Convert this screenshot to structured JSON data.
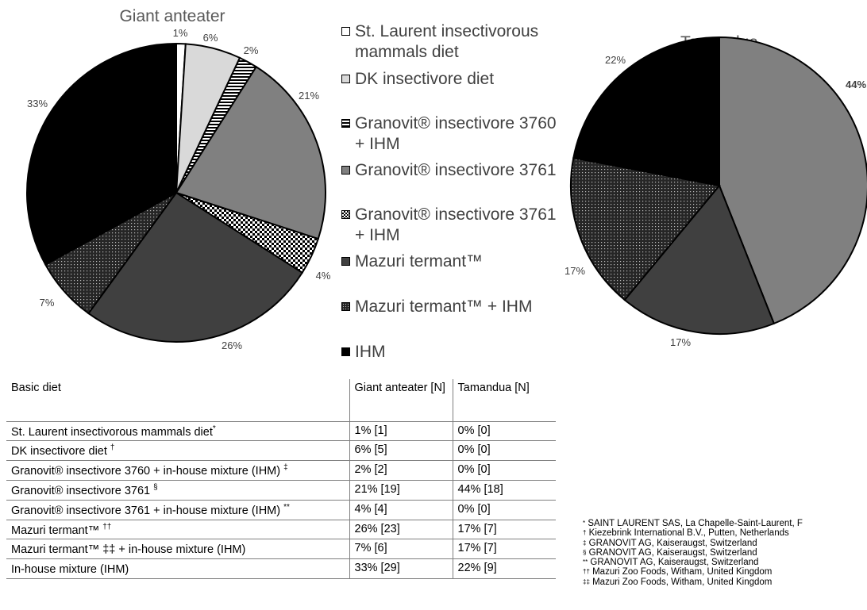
{
  "colors": {
    "text": "#404040",
    "St. Laurent": "#ffffff",
    "DK": "#d9d9d9",
    "Granovit 3760 + IHM": "hatch-horizontal",
    "Granovit 3761": "#808080",
    "Granovit 3761 + IHM": "checker",
    "Mazuri": "#404040",
    "Mazuri + IHM": "dotted-dark",
    "IHM": "#000000"
  },
  "legend": [
    {
      "label": "St. Laurent insectivorous mammals diet",
      "fill": "#ffffff"
    },
    {
      "label": "DK insectivore diet",
      "fill": "#d9d9d9"
    },
    {
      "label": "Granovit® insectivore 3760 + IHM",
      "fill": "hatch"
    },
    {
      "label": "Granovit® insectivore 3761",
      "fill": "#808080"
    },
    {
      "label": "Granovit® insectivore 3761 + IHM",
      "fill": "checker"
    },
    {
      "label": "Mazuri termant™",
      "fill": "#404040"
    },
    {
      "label": "Mazuri termant™ + IHM",
      "fill": "dots"
    },
    {
      "label": "IHM",
      "fill": "#000000"
    }
  ],
  "chart_data": [
    {
      "type": "pie",
      "title": "Giant anteater",
      "categories": [
        "St. Laurent insectivorous mammals diet",
        "DK insectivore diet",
        "Granovit® insectivore 3760 + IHM",
        "Granovit® insectivore 3761",
        "Granovit® insectivore 3761 + IHM",
        "Mazuri termant™",
        "Mazuri termant™ + IHM",
        "IHM"
      ],
      "values": [
        1,
        6,
        2,
        21,
        4,
        26,
        7,
        33
      ],
      "labels": [
        "1%",
        "6%",
        "2%",
        "21%",
        "4%",
        "26%",
        "7%",
        "33%"
      ]
    },
    {
      "type": "pie",
      "title": "Tamandua",
      "categories": [
        "Granovit® insectivore 3761",
        "Mazuri termant™",
        "Mazuri termant™ + IHM",
        "IHM"
      ],
      "values": [
        44,
        17,
        17,
        22
      ],
      "labels": [
        "44%",
        "17%",
        "17%",
        "22%"
      ]
    }
  ],
  "table": {
    "headers": [
      "Basic diet",
      "Giant anteater [N]",
      "Tamandua [N]"
    ],
    "rows": [
      {
        "diet": "St. Laurent insectivorous mammals diet",
        "mark": "*",
        "ga": "1% [1]",
        "tam": "0% [0]"
      },
      {
        "diet": "DK insectivore diet ",
        "mark": "†",
        "ga": "6% [5]",
        "tam": "0% [0]"
      },
      {
        "diet": "Granovit® insectivore 3760 + in-house mixture (IHM) ",
        "mark": "‡",
        "ga": "2% [2]",
        "tam": "0% [0]"
      },
      {
        "diet": "Granovit® insectivore 3761 ",
        "mark": "§",
        "ga": "21% [19]",
        "tam": "44% [18]"
      },
      {
        "diet": "Granovit® insectivore 3761 + in-house mixture (IHM) ",
        "mark": "**",
        "ga": "4% [4]",
        "tam": "0% [0]"
      },
      {
        "diet": "Mazuri termant™ ",
        "mark": "††",
        "ga": "26% [23]",
        "tam": "17% [7]"
      },
      {
        "diet": "Mazuri termant™ ‡‡ + in-house mixture (IHM)",
        "mark": "",
        "ga": "7% [6]",
        "tam": "17% [7]"
      },
      {
        "diet": "In-house mixture (IHM)",
        "mark": "",
        "ga": "33% [29]",
        "tam": "22% [9]"
      }
    ]
  },
  "footnotes": [
    {
      "sym": "*",
      "text": " SAINT LAURENT SAS, La Chapelle-Saint-Laurent, F"
    },
    {
      "sym": "†",
      "text": " Kiezebrink International B.V., Putten, Netherlands"
    },
    {
      "sym": "‡",
      "text": " GRANOVIT AG, Kaiseraugst, Switzerland"
    },
    {
      "sym": "§",
      "text": " GRANOVIT AG, Kaiseraugst, Switzerland"
    },
    {
      "sym": "**",
      "text": " GRANOVIT AG, Kaiseraugst, Switzerland"
    },
    {
      "sym": "††",
      "text": " Mazuri Zoo Foods, Witham, United Kingdom"
    },
    {
      "sym": "‡‡",
      "text": " Mazuri Zoo Foods, Witham, United Kingdom"
    }
  ]
}
